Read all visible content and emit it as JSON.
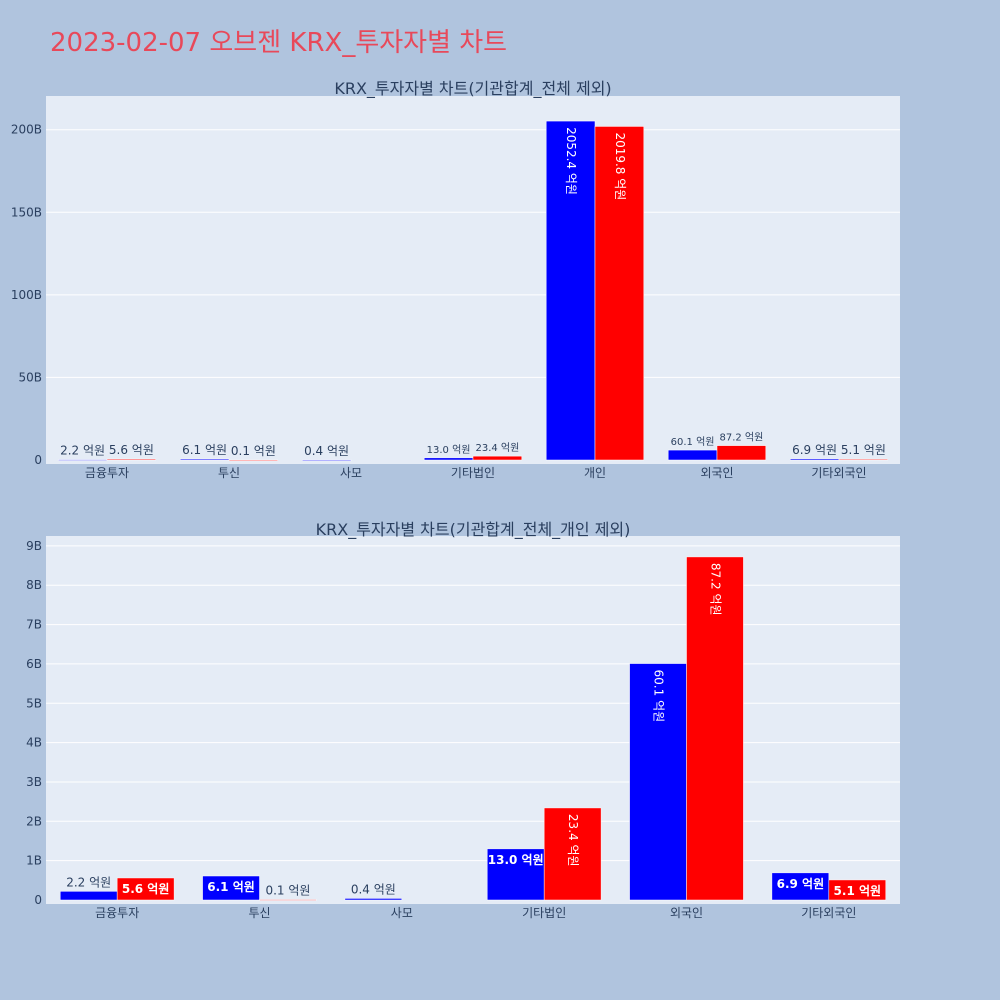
{
  "page": {
    "title": "2023-02-07 오브젠 KRX_투자자별 차트"
  },
  "chart_data": [
    {
      "type": "bar",
      "title": "KRX_투자자별 차트(기관합계_전체 제외)",
      "categories": [
        "금융투자",
        "투신",
        "사모",
        "기타법인",
        "개인",
        "외국인",
        "기타외국인"
      ],
      "y_ticks": [
        "0",
        "50B",
        "100B",
        "150B",
        "200B"
      ],
      "ylim": [
        0,
        218
      ],
      "y_unit": "B",
      "grid": true,
      "colors": [
        "#0000ff",
        "#ff0000"
      ],
      "series": [
        {
          "values": [
            0.22,
            0.61,
            0.04,
            1.3,
            205.24,
            6.01,
            0.69
          ],
          "labels": [
            "2.2 억원",
            "6.1 억원",
            "0.4 억원",
            "13.0 억원",
            "2052.4 억원",
            "60.1 억원",
            "6.9 억원"
          ]
        },
        {
          "values": [
            0.56,
            0.01,
            0,
            2.34,
            201.98,
            8.72,
            0.51
          ],
          "labels": [
            "5.6 억원",
            "0.1 억원",
            "",
            "23.4 억원",
            "2019.8 억원",
            "87.2 억원",
            "5.1 억원"
          ]
        }
      ]
    },
    {
      "type": "bar",
      "title": "KRX_투자자별 차트(기관합계_전체_개인 제외)",
      "categories": [
        "금융투자",
        "투신",
        "사모",
        "기타법인",
        "외국인",
        "기타외국인"
      ],
      "y_ticks": [
        "0",
        "1B",
        "2B",
        "3B",
        "4B",
        "5B",
        "6B",
        "7B",
        "8B",
        "9B"
      ],
      "ylim": [
        0,
        9.15
      ],
      "y_unit": "B",
      "grid": true,
      "colors": [
        "#0000ff",
        "#ff0000"
      ],
      "series": [
        {
          "values": [
            0.22,
            0.61,
            0.04,
            1.3,
            6.01,
            0.69
          ],
          "labels": [
            "2.2 억원",
            "6.1 억원",
            "0.4 억원",
            "13.0 억원",
            "60.1 억원",
            "6.9 억원"
          ]
        },
        {
          "values": [
            0.56,
            0.01,
            0,
            2.34,
            8.72,
            0.51
          ],
          "labels": [
            "5.6 억원",
            "0.1 억원",
            "",
            "23.4 억원",
            "87.2 억원",
            "5.1 억원"
          ]
        }
      ]
    }
  ]
}
